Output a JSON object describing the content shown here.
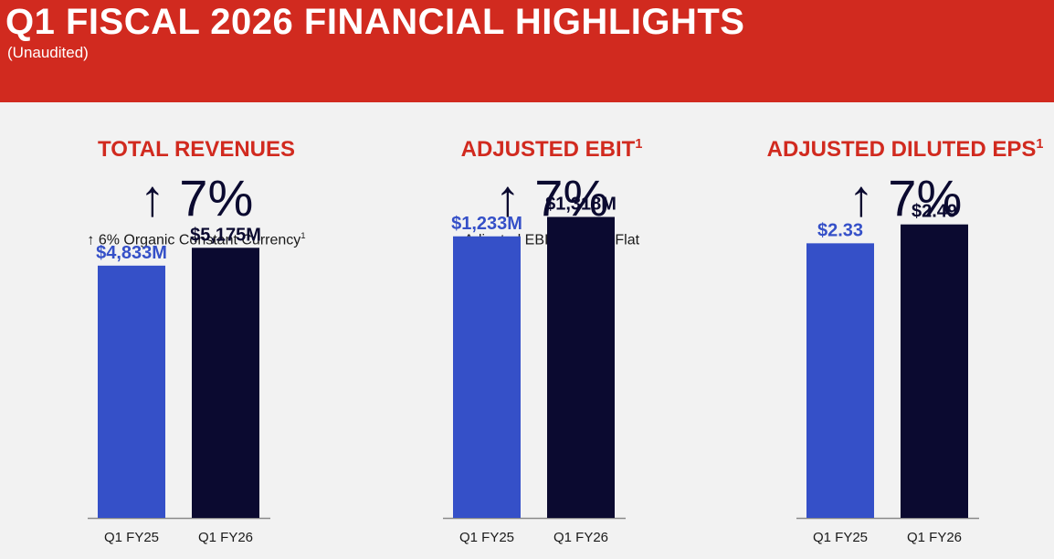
{
  "header": {
    "title": "Q1 FISCAL 2026 FINANCIAL HIGHLIGHTS",
    "subtitle": "(Unaudited)"
  },
  "colors": {
    "banner": "#d12a1f",
    "prior_year_bar": "#3550c8",
    "current_year_bar": "#0b0a30"
  },
  "chart_data": [
    {
      "type": "bar",
      "title": "TOTAL REVENUES",
      "growth": "↑ 7%",
      "note": "↑ 6% Organic Constant Currency",
      "note_footnote": "1",
      "categories": [
        "Q1 FY25",
        "Q1 FY26"
      ],
      "values": [
        4833,
        5175
      ],
      "value_labels": [
        "$4,833M",
        "$5,175M"
      ],
      "unit": "$M",
      "ylim": [
        0,
        7000
      ]
    },
    {
      "type": "bar",
      "title": "ADJUSTED EBIT",
      "title_footnote": "1",
      "growth": "↑ 7%",
      "note_prefix": "Adjusted EBIT",
      "note_footnote": "1",
      "note_suffix": " Margin Flat",
      "categories": [
        "Q1 FY25",
        "Q1 FY26"
      ],
      "values": [
        1233,
        1318
      ],
      "value_labels": [
        "$1,233M",
        "$1,318M"
      ],
      "unit": "$M",
      "ylim": [
        0,
        1600
      ]
    },
    {
      "type": "bar",
      "title": "ADJUSTED DILUTED EPS",
      "title_footnote": "1",
      "growth": "↑ 7%",
      "categories": [
        "Q1 FY25",
        "Q1 FY26"
      ],
      "values": [
        2.33,
        2.49
      ],
      "value_labels": [
        "$2.33",
        "$2.49"
      ],
      "unit": "$",
      "ylim": [
        0,
        3.1
      ]
    }
  ]
}
